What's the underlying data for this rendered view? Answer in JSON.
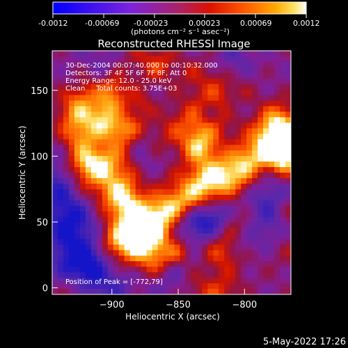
{
  "colorbar": {
    "ticks": [
      "-0.0012",
      "-0.00069",
      "-0.00023",
      "0.00023",
      "0.00069",
      "0.0012"
    ],
    "unit_label": "(photons cm⁻² s⁻¹ asec⁻²)",
    "colormap": [
      "#0000ff",
      "#8a2be2",
      "#aa2266",
      "#cc2200",
      "#ff4400",
      "#ff9900",
      "#ffd040",
      "#ffffff"
    ]
  },
  "header": {
    "line1": "30-Dec-2004 00:07:40.000 to 00:10:32.000",
    "line2": "Detectors: 3F 4F 5F 6F 7F 8F, Att 0",
    "line3": "Energy Range: 12.0 - 25.0 keV",
    "line4": "Clean     Total counts: 3.75E+03"
  },
  "peak_text": "Position of Peak = [-772,79]",
  "footer_date": "5-May-2022 17:26",
  "chart_data": {
    "type": "heatmap",
    "title": "Reconstructed RHESSI Image",
    "xlabel": "Heliocentric X (arcsec)",
    "ylabel": "Heliocentric Y (arcsec)",
    "xlim": [
      -945,
      -765
    ],
    "ylim": [
      -5,
      180
    ],
    "xticks": [
      -900,
      -850,
      -800
    ],
    "yticks": [
      0,
      50,
      100,
      150
    ],
    "peak": [
      -772,
      79
    ],
    "value_range": [
      -0.0012,
      0.0012
    ]
  }
}
